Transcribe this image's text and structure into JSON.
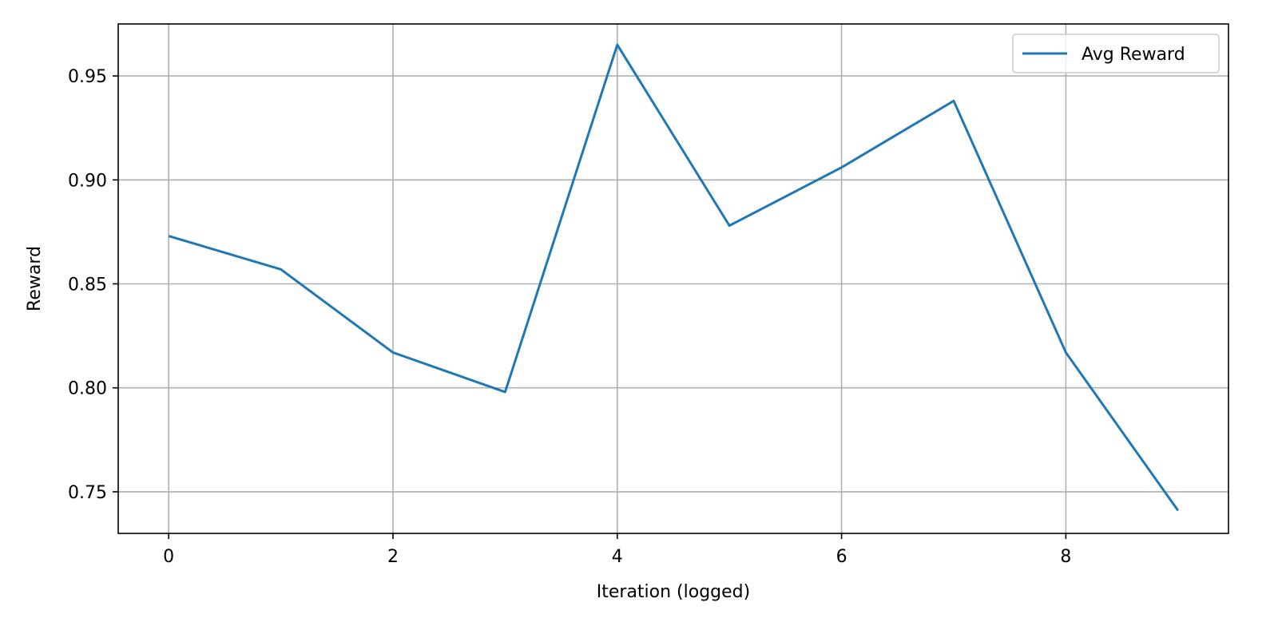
{
  "chart_data": {
    "type": "line",
    "title": "",
    "xlabel": "Iteration (logged)",
    "ylabel": "Reward",
    "xlim": [
      -0.45,
      9.45
    ],
    "ylim": [
      0.73,
      0.975
    ],
    "xticks": [
      0,
      2,
      4,
      6,
      8
    ],
    "xtick_labels": [
      "0",
      "2",
      "4",
      "6",
      "8"
    ],
    "yticks": [
      0.75,
      0.8,
      0.85,
      0.9,
      0.95
    ],
    "ytick_labels": [
      "0.75",
      "0.80",
      "0.85",
      "0.90",
      "0.95"
    ],
    "grid": true,
    "legend_position": "top-right",
    "series": [
      {
        "name": "Avg Reward",
        "color": "#1f77b4",
        "x": [
          0,
          1,
          2,
          3,
          4,
          5,
          6,
          7,
          8,
          9
        ],
        "y": [
          0.873,
          0.857,
          0.817,
          0.798,
          0.965,
          0.878,
          0.906,
          0.938,
          0.817,
          0.741
        ]
      }
    ]
  }
}
